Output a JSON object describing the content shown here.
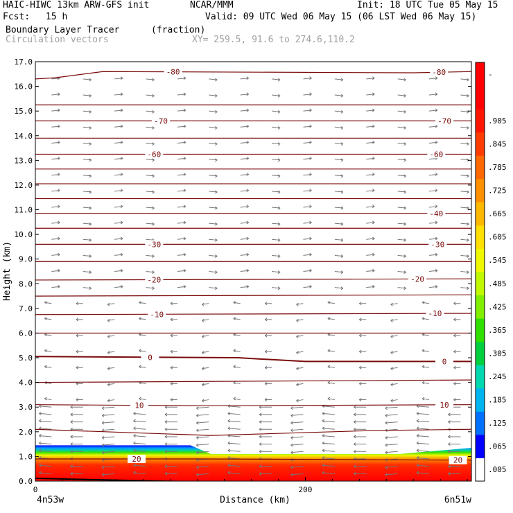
{
  "header": {
    "model": "HAIC-HIWC 13km ARW-GFS init",
    "org": "NCAR/MMM",
    "init": "Init: 18 UTC Tue 05 May 15",
    "fcst_label": "Fcst:",
    "fcst_value": "15 h",
    "valid": "Valid: 09 UTC Wed 06 May 15 (06 LST Wed 06 May 15)",
    "field": "Boundary Layer Tracer",
    "field_units": "(fraction)",
    "vectors": "Circulation vectors",
    "xy": "XY= 259.5, 91.6 to 274.6,110.2"
  },
  "chart_data": {
    "type": "heatmap",
    "title": "Boundary Layer Tracer",
    "units": "fraction",
    "xlabel": "Distance (km)",
    "ylabel": "Height (km)",
    "xlim": [
      0,
      323
    ],
    "ylim": [
      0,
      17
    ],
    "x_ticks": [
      0,
      200
    ],
    "x_tick_labels": [
      "0",
      "200"
    ],
    "x_end_labels": [
      "4n53w",
      "6n51w"
    ],
    "y_ticks": [
      0,
      1,
      2,
      3,
      4,
      5,
      6,
      7,
      8,
      9,
      10,
      11,
      12,
      13,
      14,
      15,
      16,
      17
    ],
    "y_tick_labels": [
      "0.0",
      "1.0",
      "2.0",
      "3.0",
      "4.0",
      "5.0",
      "6.0",
      "7.0",
      "8.0",
      "9.0",
      "10.0",
      "11.0",
      "12.0",
      "13.0",
      "14.0",
      "15.0",
      "16.0",
      "17.0"
    ],
    "tracer_top_km": [
      {
        "x": 0,
        "y": 1.45
      },
      {
        "x": 115,
        "y": 1.45
      },
      {
        "x": 130,
        "y": 1.1
      },
      {
        "x": 270,
        "y": 1.1
      },
      {
        "x": 323,
        "y": 1.35
      }
    ],
    "temperature_contours": [
      {
        "label": "20",
        "label_x": [
          75,
          313
        ],
        "points": [
          {
            "x": 0,
            "y": 0.9
          },
          {
            "x": 120,
            "y": 0.9
          },
          {
            "x": 323,
            "y": 0.85
          }
        ]
      },
      {
        "label": "10",
        "label_x": [
          77,
          303
        ],
        "points": [
          {
            "x": 0,
            "y": 3.1
          },
          {
            "x": 130,
            "y": 3.05
          },
          {
            "x": 323,
            "y": 3.1
          }
        ]
      },
      {
        "label": "",
        "label_x": [],
        "points": [
          {
            "x": 0,
            "y": 2.1
          },
          {
            "x": 130,
            "y": 1.85
          },
          {
            "x": 250,
            "y": 2.05
          },
          {
            "x": 323,
            "y": 2.1
          }
        ]
      },
      {
        "label": "",
        "label_x": [],
        "points": [
          {
            "x": 0,
            "y": 4.0
          },
          {
            "x": 323,
            "y": 4.1
          }
        ]
      },
      {
        "label": "0",
        "label_x": [
          85,
          303
        ],
        "points": [
          {
            "x": 0,
            "y": 5.05
          },
          {
            "x": 150,
            "y": 5.0
          },
          {
            "x": 200,
            "y": 4.85
          },
          {
            "x": 323,
            "y": 4.85
          }
        ]
      },
      {
        "label": "",
        "label_x": [],
        "points": [
          {
            "x": 0,
            "y": 6.0
          },
          {
            "x": 323,
            "y": 6.0
          }
        ]
      },
      {
        "label": "-10",
        "label_x": [
          90,
          296
        ],
        "points": [
          {
            "x": 0,
            "y": 6.75
          },
          {
            "x": 323,
            "y": 6.8
          }
        ]
      },
      {
        "label": "",
        "label_x": [],
        "points": [
          {
            "x": 0,
            "y": 7.5
          },
          {
            "x": 323,
            "y": 7.55
          }
        ]
      },
      {
        "label": "-20",
        "label_x": [
          88,
          283
        ],
        "points": [
          {
            "x": 0,
            "y": 8.15
          },
          {
            "x": 323,
            "y": 8.2
          }
        ]
      },
      {
        "label": "",
        "label_x": [],
        "points": [
          {
            "x": 0,
            "y": 8.9
          },
          {
            "x": 323,
            "y": 8.9
          }
        ]
      },
      {
        "label": "-30",
        "label_x": [
          88,
          298
        ],
        "points": [
          {
            "x": 0,
            "y": 9.6
          },
          {
            "x": 323,
            "y": 9.6
          }
        ]
      },
      {
        "label": "",
        "label_x": [],
        "points": [
          {
            "x": 0,
            "y": 10.25
          },
          {
            "x": 323,
            "y": 10.25
          }
        ]
      },
      {
        "label": "-40",
        "label_x": [
          297
        ],
        "points": [
          {
            "x": 0,
            "y": 10.85
          },
          {
            "x": 323,
            "y": 10.85
          }
        ]
      },
      {
        "label": "",
        "label_x": [],
        "points": [
          {
            "x": 0,
            "y": 11.45
          },
          {
            "x": 323,
            "y": 11.45
          }
        ]
      },
      {
        "label": "",
        "label_x": [],
        "points": [
          {
            "x": 0,
            "y": 12.05
          },
          {
            "x": 323,
            "y": 12.05
          }
        ]
      },
      {
        "label": "",
        "label_x": [],
        "points": [
          {
            "x": 0,
            "y": 12.65
          },
          {
            "x": 323,
            "y": 12.65
          }
        ]
      },
      {
        "label": "-60",
        "label_x": [
          88,
          297
        ],
        "points": [
          {
            "x": 0,
            "y": 13.25
          },
          {
            "x": 323,
            "y": 13.25
          }
        ]
      },
      {
        "label": "",
        "label_x": [],
        "points": [
          {
            "x": 0,
            "y": 13.9
          },
          {
            "x": 323,
            "y": 13.9
          }
        ]
      },
      {
        "label": "-70",
        "label_x": [
          93,
          303
        ],
        "points": [
          {
            "x": 0,
            "y": 14.6
          },
          {
            "x": 323,
            "y": 14.6
          }
        ]
      },
      {
        "label": "",
        "label_x": [],
        "points": [
          {
            "x": 0,
            "y": 15.25
          },
          {
            "x": 323,
            "y": 15.25
          }
        ]
      },
      {
        "label": "-80",
        "label_x": [
          102,
          299
        ],
        "points": [
          {
            "x": 0,
            "y": 16.3
          },
          {
            "x": 15,
            "y": 16.35
          },
          {
            "x": 50,
            "y": 16.6
          },
          {
            "x": 280,
            "y": 16.55
          },
          {
            "x": 323,
            "y": 16.6
          }
        ]
      }
    ],
    "colorbar": {
      "labels": [
        ".005",
        ".065",
        ".125",
        ".185",
        ".245",
        ".305",
        ".365",
        ".425",
        ".485",
        ".545",
        ".605",
        ".665",
        ".725",
        ".785",
        ".845",
        ".905",
        "",
        "-"
      ],
      "colors": [
        "#ffffff",
        "#0000ff",
        "#0070ff",
        "#00b4f0",
        "#00d8b0",
        "#00d040",
        "#30e000",
        "#80f000",
        "#c0f800",
        "#f0f800",
        "#ffe000",
        "#ffb800",
        "#ff9000",
        "#ff6800",
        "#ff3c00",
        "#ff1400",
        "#ff0000",
        "#ff0000"
      ]
    },
    "vectors": "Circulation vectors"
  }
}
